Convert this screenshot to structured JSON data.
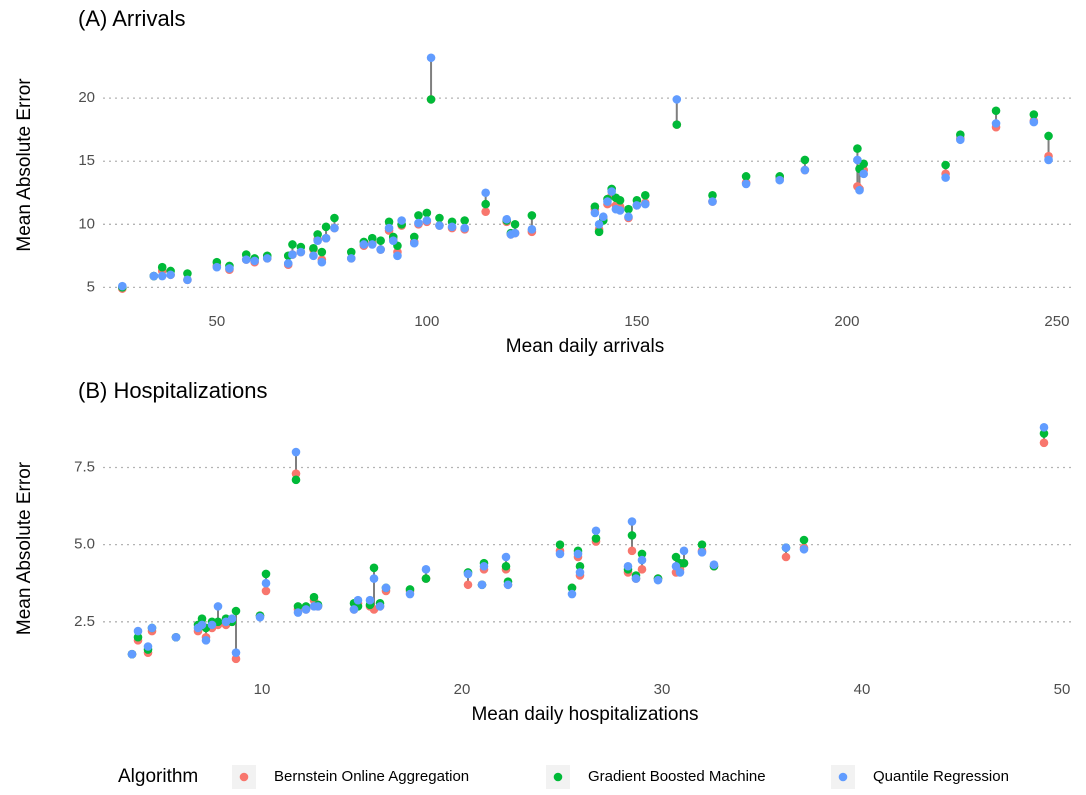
{
  "chart_data": [
    {
      "type": "scatter",
      "title": "(A) Arrivals",
      "x_label": "Mean daily arrivals",
      "y_label": "Mean Absolute Error",
      "xlim": [
        22.9,
        254.3
      ],
      "ylim": [
        4.0,
        25.4
      ],
      "xticks": [
        50,
        100,
        150,
        200,
        250
      ],
      "yticks": [
        5,
        10,
        15,
        20
      ],
      "grid": "y",
      "x": [
        27.5,
        35,
        37,
        39,
        43,
        50,
        53,
        57,
        59,
        62,
        67,
        68,
        70,
        73,
        74,
        75,
        76,
        78,
        82,
        85,
        87,
        89,
        91,
        92,
        93,
        94,
        97,
        98,
        100,
        101,
        103,
        106,
        109,
        114,
        119,
        120,
        121,
        125,
        140,
        141,
        142,
        143,
        144,
        145,
        146,
        148,
        150,
        152,
        159.5,
        168,
        176,
        184,
        190,
        202.5,
        203,
        204,
        223.5,
        227,
        235.5,
        244.5,
        248
      ],
      "series": [
        {
          "name": "Bernstein Online Aggregation",
          "color": "#f8766d",
          "values": [
            4.9,
            5.9,
            6.3,
            6.0,
            5.6,
            6.7,
            6.4,
            7.2,
            7.0,
            7.3,
            6.8,
            7.6,
            7.8,
            8.0,
            8.8,
            7.2,
            8.9,
            9.7,
            7.3,
            8.3,
            8.5,
            8.0,
            9.5,
            8.8,
            7.8,
            9.9,
            8.6,
            10.0,
            10.2,
            19.9,
            9.9,
            9.7,
            9.6,
            11.0,
            10.2,
            9.2,
            9.3,
            9.4,
            11.2,
            9.6,
            10.5,
            11.6,
            12.3,
            11.5,
            11.4,
            10.5,
            11.5,
            11.7,
            17.9,
            11.8,
            13.3,
            13.6,
            14.3,
            13.0,
            12.8,
            14.3,
            14.0,
            16.8,
            17.7,
            18.2,
            15.4
          ]
        },
        {
          "name": "Gradient Boosted Machine",
          "color": "#00ba38",
          "values": [
            5.0,
            5.9,
            6.6,
            6.3,
            6.1,
            7.0,
            6.7,
            7.6,
            7.3,
            7.5,
            7.5,
            8.4,
            8.2,
            8.1,
            9.2,
            7.8,
            9.8,
            10.5,
            7.8,
            8.6,
            8.9,
            8.7,
            10.2,
            9.0,
            8.3,
            10.0,
            9.0,
            10.7,
            10.9,
            19.9,
            10.5,
            10.2,
            10.3,
            11.6,
            10.3,
            9.3,
            10.0,
            10.7,
            11.4,
            9.4,
            10.3,
            12.0,
            12.8,
            12.1,
            11.9,
            11.2,
            11.9,
            12.3,
            17.9,
            12.3,
            13.8,
            13.8,
            15.1,
            16.0,
            14.4,
            14.8,
            14.7,
            17.1,
            19.0,
            18.7,
            17.0
          ]
        },
        {
          "name": "Quantile Regression",
          "color": "#619cff",
          "values": [
            5.1,
            5.9,
            5.9,
            6.0,
            5.6,
            6.6,
            6.5,
            7.2,
            7.1,
            7.3,
            6.9,
            7.6,
            7.8,
            7.5,
            8.7,
            7.0,
            8.9,
            9.7,
            7.3,
            8.4,
            8.4,
            8.0,
            9.7,
            8.7,
            7.5,
            10.3,
            8.5,
            10.1,
            10.3,
            23.2,
            9.9,
            9.8,
            9.7,
            12.5,
            10.4,
            9.2,
            9.3,
            9.6,
            10.9,
            10.0,
            10.6,
            11.8,
            12.6,
            11.2,
            11.1,
            10.6,
            11.5,
            11.6,
            19.9,
            11.8,
            13.2,
            13.5,
            14.3,
            15.1,
            12.7,
            14.0,
            13.7,
            16.7,
            18.0,
            18.1,
            15.1
          ]
        }
      ],
      "legend_title": "Algorithm"
    },
    {
      "type": "scatter",
      "title": "(B) Hospitalizations",
      "x_label": "Mean daily hospitalizations",
      "y_label": "Mean Absolute Error",
      "xlim": [
        2.05,
        50.65
      ],
      "ylim": [
        0.55,
        9.2
      ],
      "xticks": [
        10,
        20,
        30,
        40,
        50
      ],
      "yticks": [
        2.5,
        {
          "value": 5,
          "label": "5.0"
        },
        7.5
      ],
      "grid": "y",
      "x": [
        3.5,
        3.8,
        4.3,
        4.5,
        5.7,
        6.8,
        7.0,
        7.2,
        7.5,
        7.8,
        8.2,
        8.5,
        8.7,
        9.9,
        10.2,
        11.7,
        11.8,
        12.2,
        12.6,
        12.8,
        14.6,
        14.8,
        15.4,
        15.6,
        15.9,
        16.2,
        17.4,
        18.2,
        20.3,
        21.0,
        21.1,
        22.2,
        22.3,
        24.9,
        25.5,
        25.8,
        25.9,
        26.7,
        28.3,
        28.5,
        28.7,
        29.0,
        29.8,
        30.7,
        30.9,
        31.1,
        32.0,
        32.6,
        36.2,
        37.1,
        49.1
      ],
      "series": [
        {
          "name": "Bernstein Online Aggregation",
          "color": "#f8766d",
          "values": [
            1.45,
            1.9,
            1.5,
            2.2,
            2.0,
            2.2,
            2.4,
            2.0,
            2.3,
            2.4,
            2.4,
            2.5,
            1.3,
            2.7,
            3.5,
            7.3,
            2.9,
            2.9,
            3.2,
            3.0,
            2.9,
            3.1,
            3.0,
            2.9,
            3.0,
            3.5,
            3.5,
            3.9,
            3.7,
            3.7,
            4.2,
            4.2,
            3.7,
            4.8,
            3.6,
            4.6,
            4.0,
            5.1,
            4.1,
            4.8,
            3.9,
            4.2,
            3.9,
            4.1,
            4.2,
            4.4,
            4.8,
            4.3,
            4.6,
            4.9,
            8.3
          ]
        },
        {
          "name": "Gradient Boosted Machine",
          "color": "#00ba38",
          "values": [
            1.45,
            2.0,
            1.6,
            2.3,
            2.0,
            2.4,
            2.6,
            2.3,
            2.5,
            2.5,
            2.6,
            2.5,
            2.85,
            2.7,
            4.05,
            7.1,
            3.0,
            3.0,
            3.3,
            3.05,
            3.1,
            3.0,
            3.05,
            4.25,
            3.1,
            3.6,
            3.55,
            3.9,
            4.1,
            3.7,
            4.4,
            4.3,
            3.8,
            5.0,
            3.6,
            4.8,
            4.3,
            5.2,
            4.2,
            5.3,
            4.0,
            4.7,
            3.9,
            4.6,
            4.4,
            4.4,
            5.0,
            4.3,
            4.9,
            5.15,
            8.6
          ]
        },
        {
          "name": "Quantile Regression",
          "color": "#619cff",
          "values": [
            1.45,
            2.2,
            1.7,
            2.3,
            2.0,
            2.3,
            2.4,
            1.9,
            2.4,
            3.0,
            2.5,
            2.6,
            1.5,
            2.65,
            3.75,
            8.0,
            2.8,
            2.9,
            3.0,
            3.0,
            2.9,
            3.2,
            3.2,
            3.9,
            3.0,
            3.6,
            3.4,
            4.2,
            4.05,
            3.7,
            4.3,
            4.6,
            3.7,
            4.7,
            3.4,
            4.7,
            4.1,
            5.45,
            4.3,
            5.75,
            3.9,
            4.5,
            3.85,
            4.3,
            4.1,
            4.8,
            4.75,
            4.35,
            4.9,
            4.85,
            8.8
          ]
        }
      ]
    }
  ]
}
